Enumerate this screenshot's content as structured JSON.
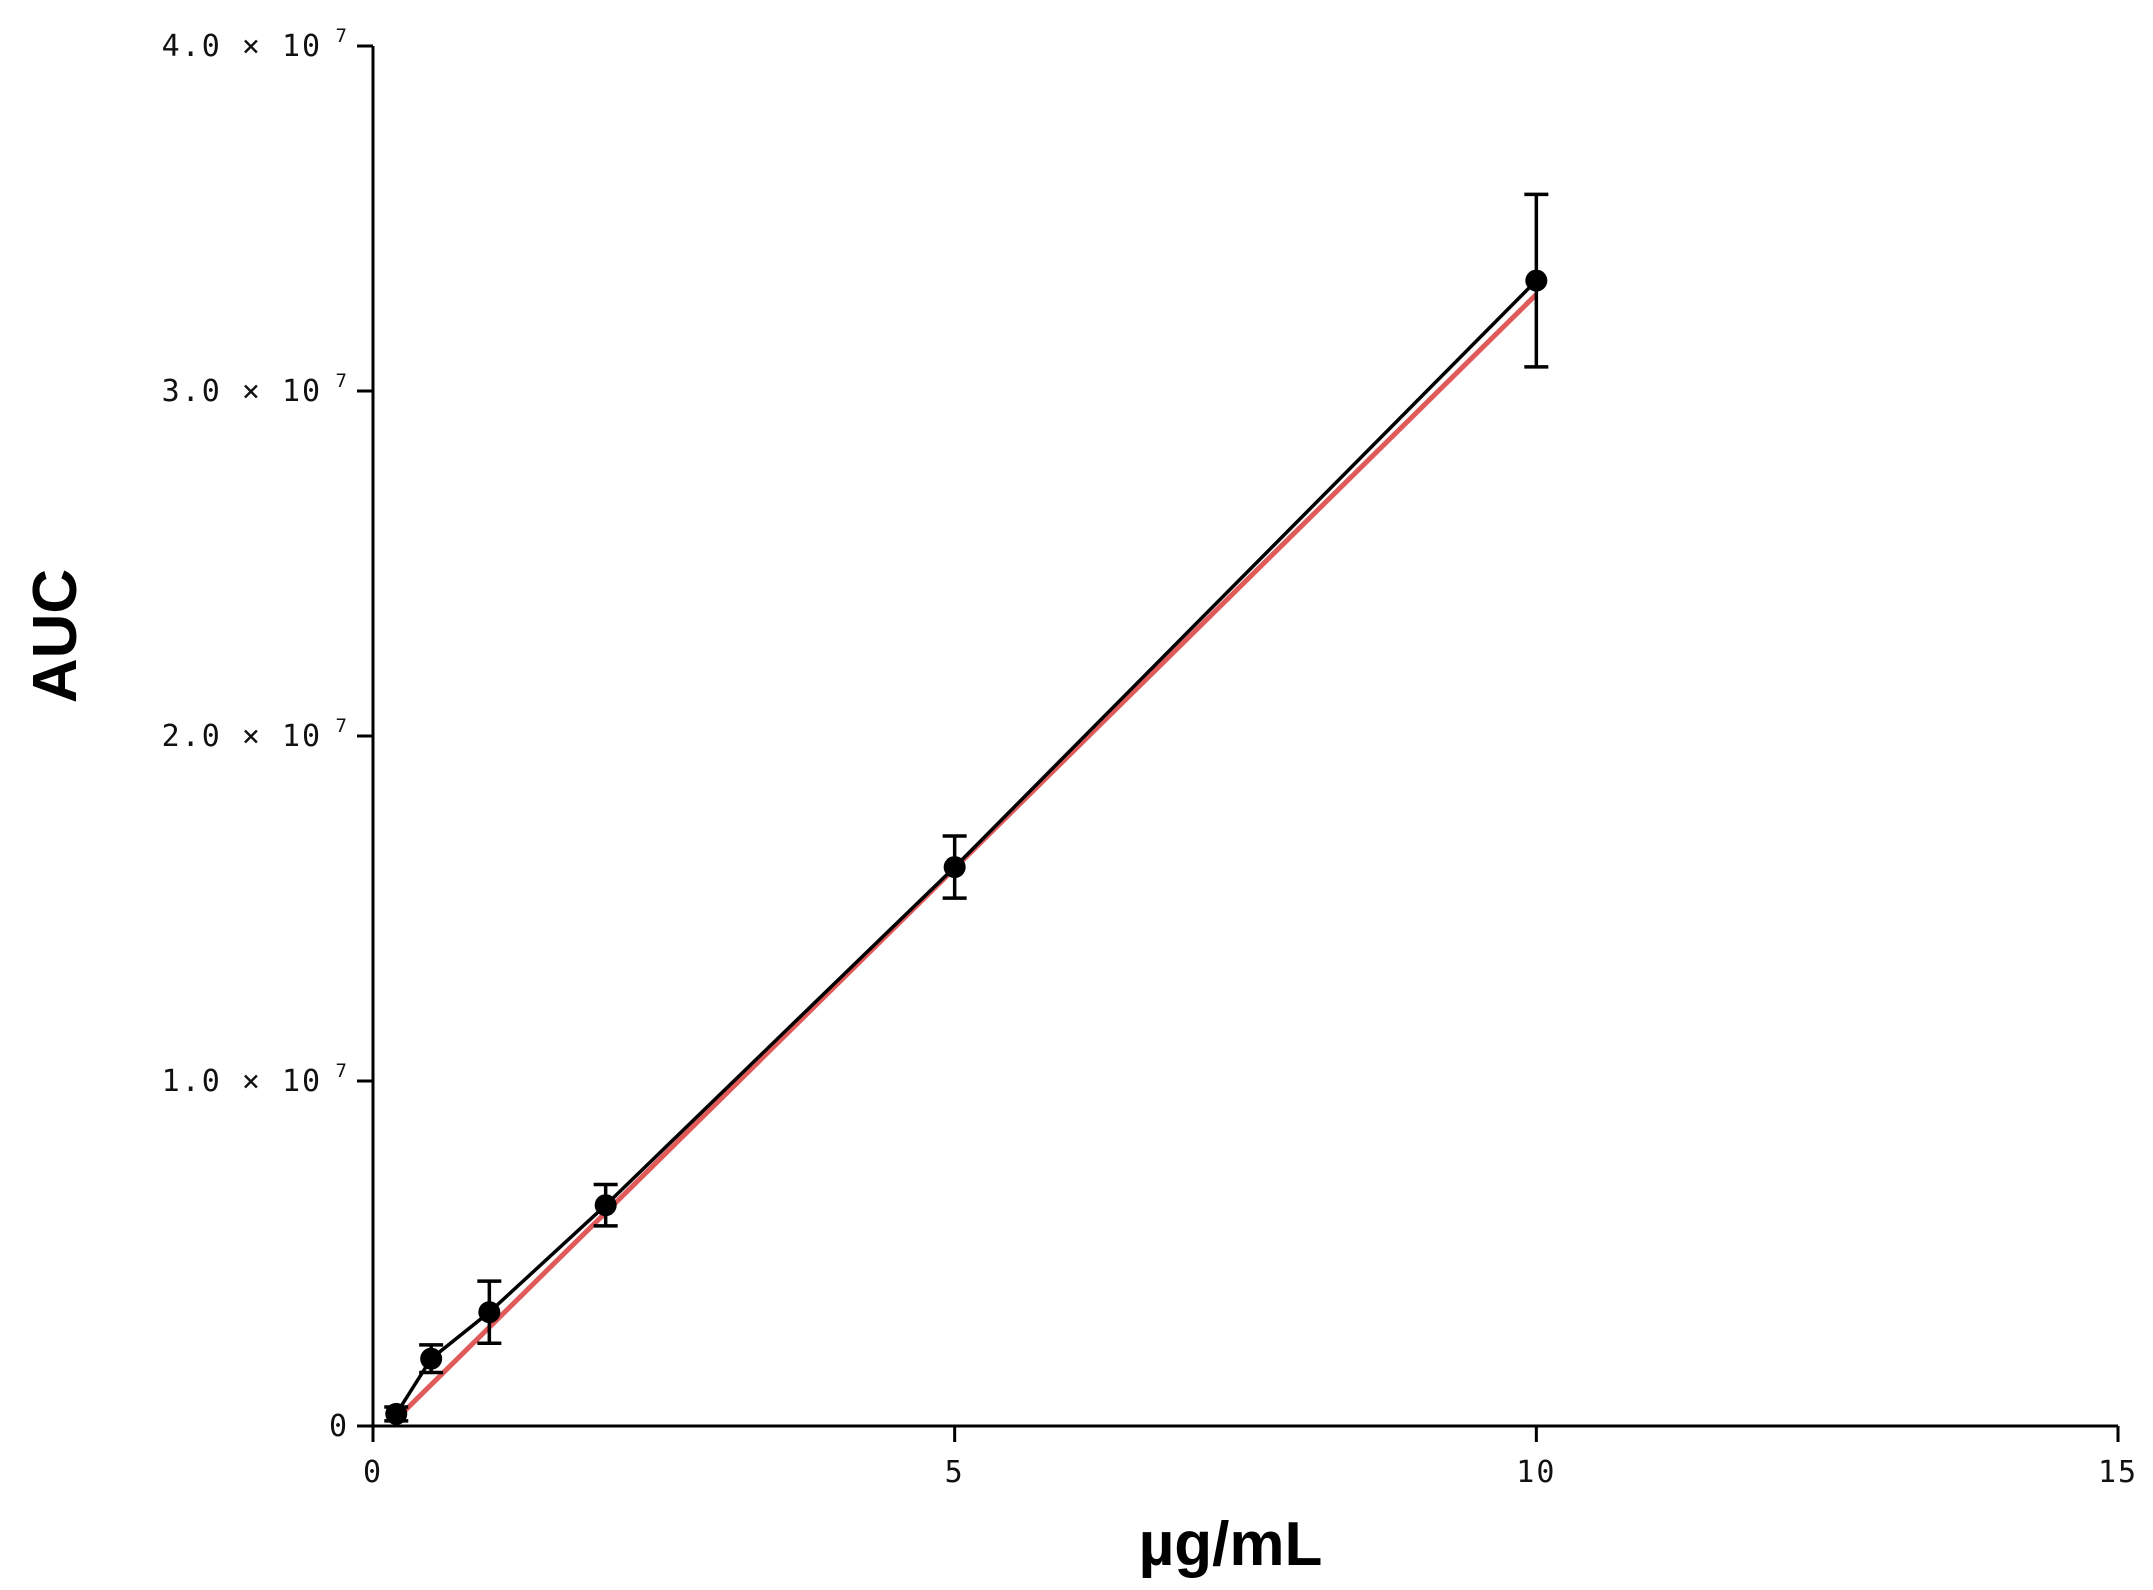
{
  "chart_data": {
    "type": "scatter",
    "xlabel": "µg/mL",
    "ylabel": "AUC",
    "xlim": [
      0,
      15
    ],
    "ylim": [
      0,
      40000000
    ],
    "x_ticks": [
      {
        "value": 0,
        "label": "0"
      },
      {
        "value": 5,
        "label": "5"
      },
      {
        "value": 10,
        "label": "10"
      },
      {
        "value": 15,
        "label": "15"
      }
    ],
    "y_ticks": [
      {
        "value": 0,
        "mantissa": "0",
        "exponent": ""
      },
      {
        "value": 10000000,
        "mantissa": "1.0 × 10",
        "exponent": "7"
      },
      {
        "value": 20000000,
        "mantissa": "2.0 × 10",
        "exponent": "7"
      },
      {
        "value": 30000000,
        "mantissa": "3.0 × 10",
        "exponent": "7"
      },
      {
        "value": 40000000,
        "mantissa": "4.0 × 10",
        "exponent": "7"
      }
    ],
    "grid": false,
    "series": [
      {
        "points": [
          {
            "x": 0.2,
            "y": 350000,
            "err": 200000
          },
          {
            "x": 0.5,
            "y": 1950000,
            "err": 400000
          },
          {
            "x": 1.0,
            "y": 3300000,
            "err": 900000
          },
          {
            "x": 2.0,
            "y": 6400000,
            "err": 600000
          },
          {
            "x": 5.0,
            "y": 16200000,
            "err": 900000
          },
          {
            "x": 10.0,
            "y": 33200000,
            "err": 2500000
          }
        ],
        "marker": "circle",
        "color": "#000000",
        "connected": true
      }
    ],
    "fit_line": {
      "x": [
        0.2,
        10.0
      ],
      "y": [
        200000,
        32800000
      ],
      "color": "#e05a5a"
    }
  }
}
